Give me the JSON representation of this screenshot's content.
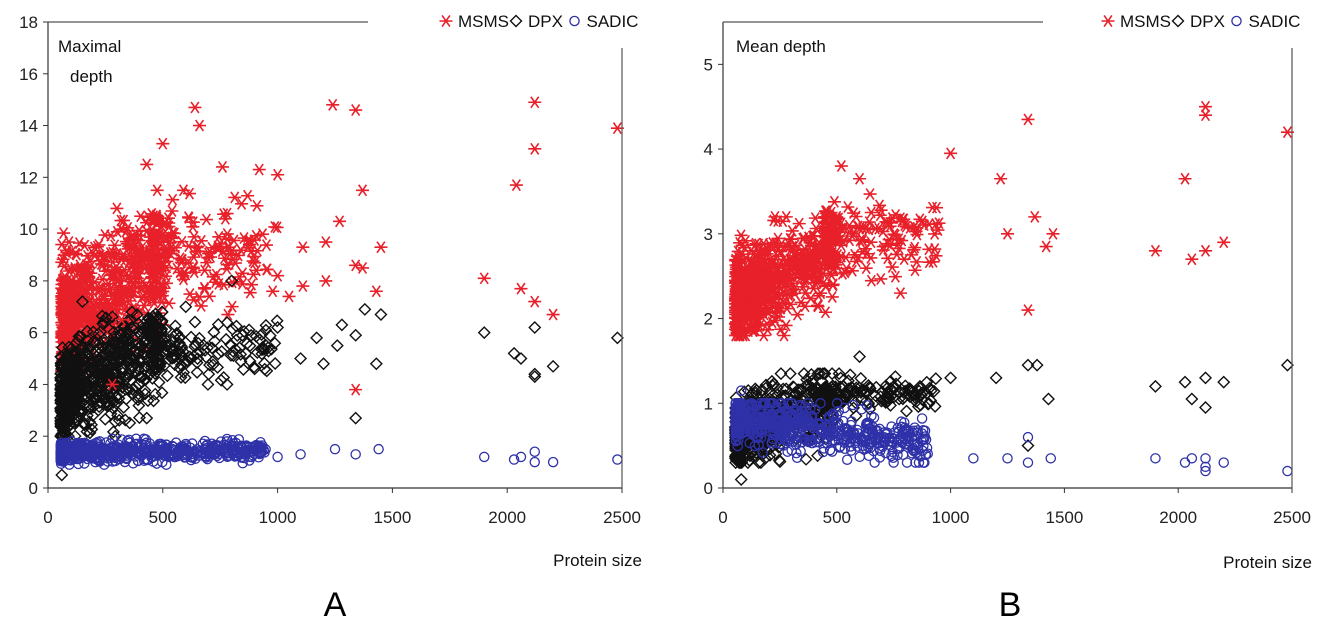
{
  "chart_data": [
    {
      "type": "scatter",
      "panel_label": "A",
      "annotation": "Maximal\ndepth",
      "xlabel": "Protein size",
      "ylabel": "",
      "xlim": [
        0,
        2500
      ],
      "ylim": [
        0,
        18
      ],
      "xticks": [
        0,
        500,
        1000,
        1500,
        2000,
        2500
      ],
      "yticks": [
        0,
        2,
        4,
        6,
        8,
        10,
        12,
        14,
        16,
        18
      ],
      "grid": false,
      "legend_position": "top-right",
      "series": [
        {
          "name": "MSMS",
          "marker": "asterisk",
          "color": "#e8202a",
          "points": [
            [
              640,
              14.7
            ],
            [
              660,
              14.0
            ],
            [
              1240,
              14.8
            ],
            [
              1340,
              14.6
            ],
            [
              2120,
              14.9
            ],
            [
              2480,
              13.9
            ],
            [
              500,
              13.3
            ],
            [
              2120,
              13.1
            ],
            [
              430,
              12.5
            ],
            [
              760,
              12.4
            ],
            [
              920,
              12.3
            ],
            [
              1000,
              12.1
            ],
            [
              2040,
              11.7
            ],
            [
              590,
              11.5
            ],
            [
              1370,
              11.5
            ],
            [
              910,
              10.9
            ],
            [
              300,
              10.8
            ],
            [
              540,
              10.7
            ],
            [
              780,
              10.6
            ],
            [
              1270,
              10.3
            ],
            [
              1210,
              9.5
            ],
            [
              1450,
              9.3
            ],
            [
              1110,
              9.3
            ],
            [
              900,
              8.7
            ],
            [
              1340,
              8.6
            ],
            [
              1370,
              8.5
            ],
            [
              1000,
              8.2
            ],
            [
              1900,
              8.1
            ],
            [
              1210,
              8.0
            ],
            [
              1110,
              7.8
            ],
            [
              2060,
              7.7
            ],
            [
              1430,
              7.6
            ],
            [
              1050,
              7.4
            ],
            [
              2120,
              7.2
            ],
            [
              2200,
              6.7
            ],
            [
              1340,
              3.8
            ],
            [
              280,
              4.0
            ],
            [
              320,
              6.5
            ]
          ]
        },
        {
          "name": "DPX",
          "marker": "diamond",
          "color": "#111111",
          "points": [
            [
              60,
              0.5
            ],
            [
              800,
              8.0
            ],
            [
              1380,
              6.9
            ],
            [
              1450,
              6.7
            ],
            [
              1280,
              6.3
            ],
            [
              1900,
              6.0
            ],
            [
              2120,
              6.2
            ],
            [
              2480,
              5.8
            ],
            [
              1340,
              5.9
            ],
            [
              2030,
              5.2
            ],
            [
              2060,
              5.0
            ],
            [
              2200,
              4.7
            ],
            [
              2120,
              4.4
            ],
            [
              2120,
              4.3
            ],
            [
              1430,
              4.8
            ],
            [
              1200,
              4.8
            ],
            [
              1100,
              5.0
            ],
            [
              880,
              4.9
            ],
            [
              780,
              4.0
            ],
            [
              430,
              2.7
            ],
            [
              1340,
              2.7
            ],
            [
              150,
              7.2
            ],
            [
              600,
              7.0
            ],
            [
              1000,
              6.2
            ],
            [
              950,
              5.5
            ],
            [
              700,
              4.4
            ],
            [
              900,
              4.6
            ],
            [
              1170,
              5.8
            ],
            [
              1260,
              5.5
            ]
          ]
        },
        {
          "name": "SADIC",
          "marker": "circle",
          "color": "#2e31a8",
          "points": [
            [
              1440,
              1.5
            ],
            [
              1340,
              1.3
            ],
            [
              1900,
              1.2
            ],
            [
              2030,
              1.1
            ],
            [
              2060,
              1.2
            ],
            [
              2120,
              1.4
            ],
            [
              2120,
              1.0
            ],
            [
              2200,
              1.0
            ],
            [
              2480,
              1.1
            ],
            [
              1250,
              1.5
            ],
            [
              1100,
              1.3
            ],
            [
              1000,
              1.2
            ],
            [
              800,
              1.6
            ],
            [
              600,
              1.7
            ]
          ]
        }
      ],
      "clusters": [
        {
          "series": "MSMS",
          "n": 600,
          "x": [
            60,
            520
          ],
          "y": [
            4.5,
            10.5
          ],
          "trend": "rising"
        },
        {
          "series": "MSMS",
          "n": 160,
          "x": [
            450,
            1000
          ],
          "y": [
            6.5,
            11.5
          ],
          "trend": "flat"
        },
        {
          "series": "DPX",
          "n": 700,
          "x": [
            55,
            500
          ],
          "y": [
            2.0,
            6.8
          ],
          "trend": "rising"
        },
        {
          "series": "DPX",
          "n": 160,
          "x": [
            450,
            1000
          ],
          "y": [
            4.0,
            6.8
          ],
          "trend": "flat"
        },
        {
          "series": "SADIC",
          "n": 700,
          "x": [
            55,
            950
          ],
          "y": [
            0.9,
            1.9
          ],
          "trend": "flat"
        }
      ]
    },
    {
      "type": "scatter",
      "panel_label": "B",
      "annotation": "Mean depth",
      "xlabel": "Protein size",
      "ylabel": "",
      "xlim": [
        0,
        2500
      ],
      "ylim": [
        0,
        5.5
      ],
      "xticks": [
        0,
        500,
        1000,
        1500,
        2000,
        2500
      ],
      "yticks": [
        0,
        1,
        2,
        3,
        4,
        5
      ],
      "grid": false,
      "legend_position": "top-right",
      "series": [
        {
          "name": "MSMS",
          "marker": "asterisk",
          "color": "#e8202a",
          "points": [
            [
              2120,
              4.5
            ],
            [
              2120,
              4.4
            ],
            [
              1340,
              4.35
            ],
            [
              2480,
              4.2
            ],
            [
              1000,
              3.95
            ],
            [
              2030,
              3.65
            ],
            [
              1220,
              3.65
            ],
            [
              600,
              3.65
            ],
            [
              520,
              3.8
            ],
            [
              2200,
              2.9
            ],
            [
              1900,
              2.8
            ],
            [
              2060,
              2.7
            ],
            [
              2120,
              2.8
            ],
            [
              1450,
              3.0
            ],
            [
              1420,
              2.85
            ],
            [
              1340,
              2.1
            ],
            [
              780,
              2.3
            ],
            [
              1370,
              3.2
            ],
            [
              1250,
              3.0
            ]
          ]
        },
        {
          "name": "DPX",
          "marker": "diamond",
          "color": "#111111",
          "points": [
            [
              2480,
              1.45
            ],
            [
              1340,
              1.45
            ],
            [
              1380,
              1.45
            ],
            [
              1900,
              1.2
            ],
            [
              2030,
              1.25
            ],
            [
              2120,
              1.3
            ],
            [
              2200,
              1.25
            ],
            [
              2120,
              0.95
            ],
            [
              2060,
              1.05
            ],
            [
              1430,
              1.05
            ],
            [
              600,
              1.55
            ],
            [
              1000,
              1.3
            ],
            [
              1200,
              1.3
            ],
            [
              1340,
              0.5
            ],
            [
              80,
              0.1
            ]
          ]
        },
        {
          "name": "SADIC",
          "marker": "circle",
          "color": "#2e31a8",
          "points": [
            [
              1340,
              0.6
            ],
            [
              1900,
              0.35
            ],
            [
              2030,
              0.3
            ],
            [
              2060,
              0.35
            ],
            [
              2120,
              0.35
            ],
            [
              2120,
              0.25
            ],
            [
              2120,
              0.2
            ],
            [
              2200,
              0.3
            ],
            [
              2480,
              0.2
            ],
            [
              1440,
              0.35
            ],
            [
              1340,
              0.3
            ],
            [
              1250,
              0.35
            ],
            [
              1100,
              0.35
            ],
            [
              80,
              1.15
            ]
          ]
        }
      ],
      "clusters": [
        {
          "series": "MSMS",
          "n": 600,
          "x": [
            55,
            500
          ],
          "y": [
            1.8,
            3.2
          ],
          "trend": "rising"
        },
        {
          "series": "MSMS",
          "n": 160,
          "x": [
            450,
            950
          ],
          "y": [
            2.4,
            3.5
          ],
          "trend": "flat"
        },
        {
          "series": "DPX",
          "n": 650,
          "x": [
            55,
            500
          ],
          "y": [
            0.3,
            1.35
          ],
          "trend": "rising"
        },
        {
          "series": "DPX",
          "n": 160,
          "x": [
            450,
            950
          ],
          "y": [
            0.85,
            1.35
          ],
          "trend": "flat"
        },
        {
          "series": "SADIC",
          "n": 650,
          "x": [
            55,
            900
          ],
          "y": [
            0.3,
            1.0
          ],
          "trend": "falling"
        }
      ]
    }
  ]
}
